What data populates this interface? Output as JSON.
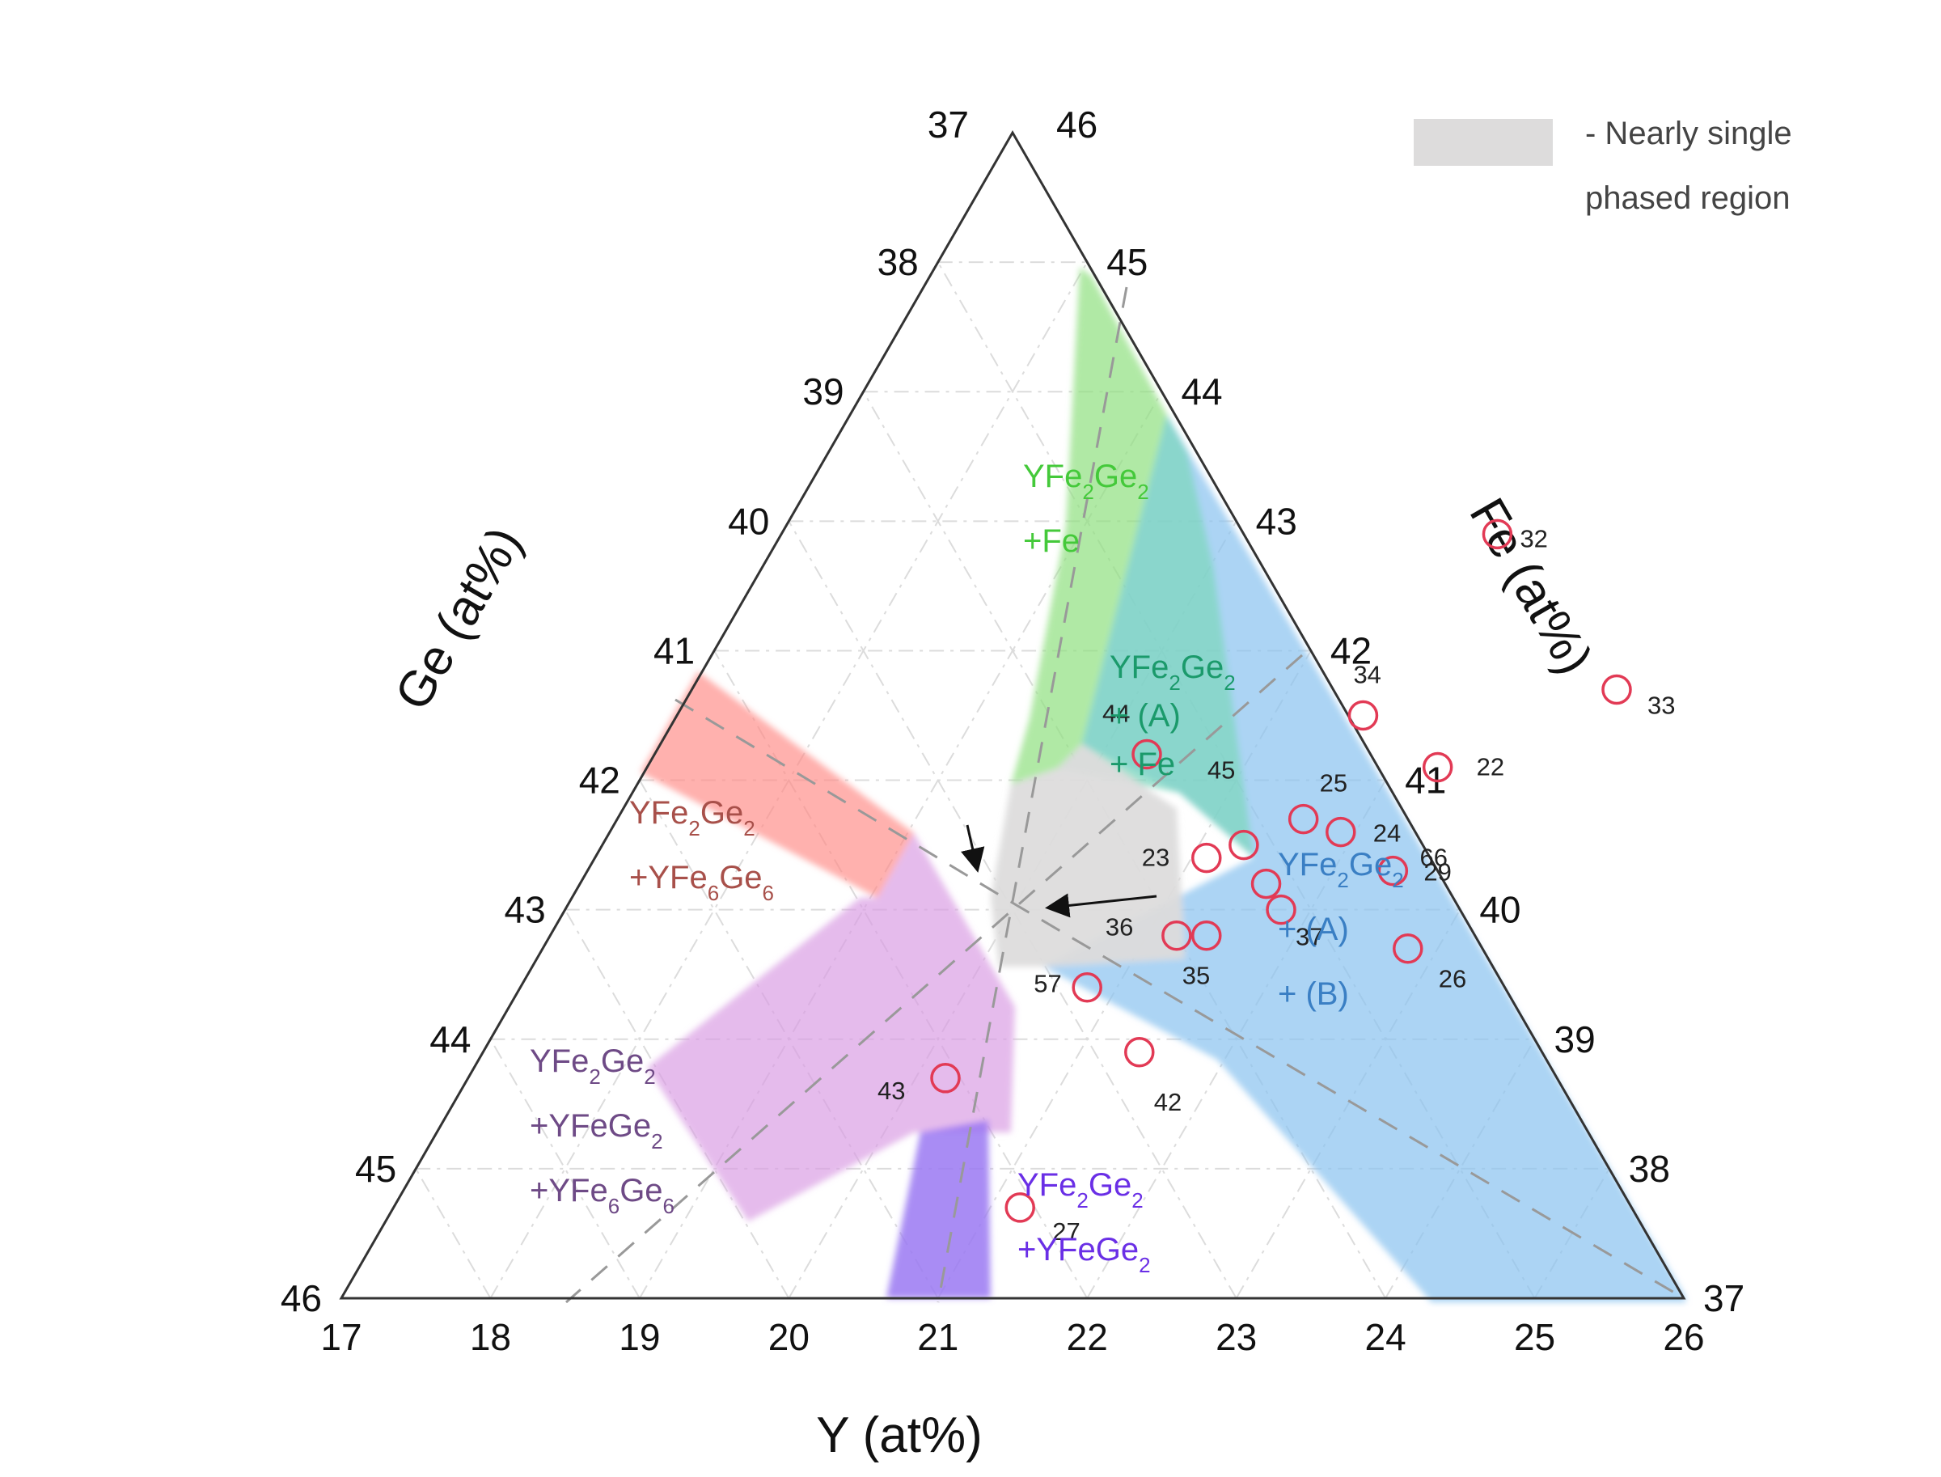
{
  "chart_data": {
    "type": "scatter",
    "subtype": "ternary",
    "title": "",
    "axes": {
      "y": {
        "title": "Y (at%)",
        "range": [
          17,
          26
        ],
        "ticks": [
          "17",
          "18",
          "19",
          "20",
          "21",
          "22",
          "23",
          "24",
          "25",
          "26"
        ]
      },
      "ge": {
        "title": "Ge (at%)",
        "range": [
          37,
          46
        ],
        "ticks": [
          "37",
          "38",
          "39",
          "40",
          "41",
          "42",
          "43",
          "44",
          "45",
          "46"
        ]
      },
      "fe": {
        "title": "Fe (at%)",
        "range": [
          37,
          46
        ],
        "ticks": [
          "46",
          "45",
          "44",
          "43",
          "42",
          "41",
          "40",
          "39",
          "38",
          "37"
        ]
      }
    },
    "grid": true,
    "point_color": "#e23a55",
    "points": [
      {
        "label": "32",
        "y": 21.8,
        "fe": 42.9
      },
      {
        "label": "33",
        "y": 23.2,
        "fe": 41.7
      },
      {
        "label": "34",
        "y": 21.6,
        "fe": 41.5
      },
      {
        "label": "22",
        "y": 22.3,
        "fe": 41.1
      },
      {
        "label": "44",
        "y": 20.3,
        "fe": 41.2
      },
      {
        "label": "25",
        "y": 21.6,
        "fe": 40.7
      },
      {
        "label": "24",
        "y": 21.9,
        "fe": 40.6
      },
      {
        "label": "23",
        "y": 21.1,
        "fe": 40.4
      },
      {
        "label": "45",
        "y": 21.3,
        "fe": 40.5
      },
      {
        "label": "66",
        "y": 21.6,
        "fe": 40.2
      },
      {
        "label": "37",
        "y": 21.8,
        "fe": 40.0
      },
      {
        "label": "29",
        "y": 22.4,
        "fe": 40.3
      },
      {
        "label": "36",
        "y": 21.2,
        "fe": 39.8
      },
      {
        "label": "35",
        "y": 21.4,
        "fe": 39.8
      },
      {
        "label": "57",
        "y": 20.8,
        "fe": 39.4
      },
      {
        "label": "26",
        "y": 22.8,
        "fe": 39.7
      },
      {
        "label": "42",
        "y": 21.4,
        "fe": 38.9
      },
      {
        "label": "43",
        "y": 20.2,
        "fe": 38.7
      },
      {
        "label": "27",
        "y": 21.2,
        "fe": 37.7
      }
    ],
    "regions": [
      {
        "name": "YFe2Ge2 +Fe",
        "color": "#8fe07f"
      },
      {
        "name": "YFe2Ge2 + (A) + Fe",
        "color": "#7fd7bf"
      },
      {
        "name": "YFe2Ge2 + (A) + (B)",
        "color": "#8cc3f0"
      },
      {
        "name": "YFe2Ge2 +YFe6Ge6",
        "color": "#ff8c88"
      },
      {
        "name": "YFe2Ge2 +YFeGe2 +YFe6Ge6",
        "color": "#d99be3"
      },
      {
        "name": "YFe2Ge2 +YFeGe2",
        "color": "#9a78f2"
      },
      {
        "name": "Nearly single phased region",
        "color": "#dddcdc"
      }
    ],
    "legend": {
      "position": "top-right",
      "line1": "- Nearly single",
      "line2": "phased region",
      "color": "#dddcdc"
    }
  },
  "region_labels": {
    "green": {
      "line1": "YFe",
      "sub1": "2",
      "line1b": "Ge",
      "sub1b": "2",
      "line2": "+Fe",
      "color": "#44c93a"
    },
    "teal": {
      "line1": "YFe",
      "sub1": "2",
      "line1b": "Ge",
      "sub1b": "2",
      "line2": "+ (A)",
      "line3": "+ Fe",
      "color": "#1b9a6b"
    },
    "blue": {
      "line1": "YFe",
      "sub1": "2",
      "line1b": "Ge",
      "sub1b": "2",
      "line2": "+  (A)",
      "line3": "+  (B)",
      "color": "#3a7fc4"
    },
    "red": {
      "line1": "YFe",
      "sub1": "2",
      "line1b": "Ge",
      "sub1b": "2",
      "line2a": "+YFe",
      "sub2": "6",
      "line2b": "Ge",
      "sub2b": "6",
      "color": "#a8504a"
    },
    "purple": {
      "line1": "YFe",
      "sub1": "2",
      "line1b": "Ge",
      "sub1b": "2",
      "line2a": "+YFeGe",
      "sub2": "2",
      "line3a": "+YFe",
      "sub3": "6",
      "line3b": "Ge",
      "sub3b": "6",
      "color": "#6e4a86"
    },
    "violet": {
      "line1": "YFe",
      "sub1": "2",
      "line1b": "Ge",
      "sub1b": "2",
      "line2a": "+YFeGe",
      "sub2": "2",
      "color": "#6a2fe6"
    }
  }
}
